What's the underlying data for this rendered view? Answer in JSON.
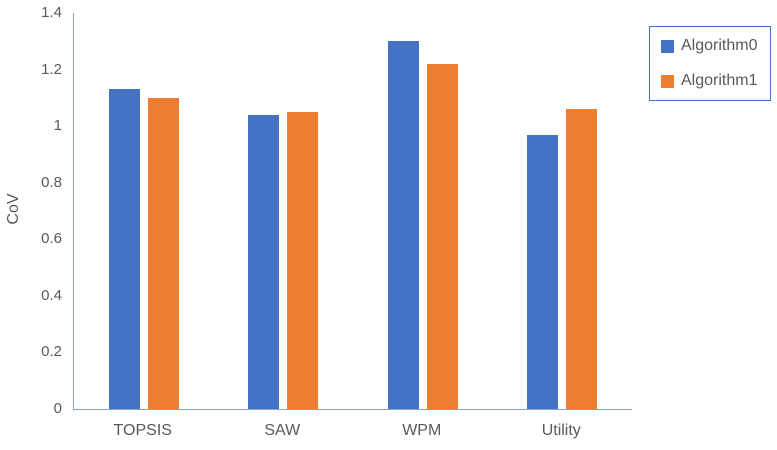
{
  "chart_data": {
    "type": "bar",
    "title": "",
    "xlabel": "",
    "ylabel": "CoV",
    "categories": [
      "TOPSIS",
      "SAW",
      "WPM",
      "Utility"
    ],
    "series": [
      {
        "name": "Algorithm0",
        "color": "#4472C4",
        "values": [
          1.13,
          1.04,
          1.3,
          0.97
        ]
      },
      {
        "name": "Algorithm1",
        "color": "#ED7D31",
        "values": [
          1.1,
          1.05,
          1.22,
          1.06
        ]
      }
    ],
    "ylim": [
      0,
      1.4
    ],
    "yticks": [
      0,
      0.2,
      0.4,
      0.6,
      0.8,
      1,
      1.2,
      1.4
    ],
    "ytick_labels": [
      "0",
      "0.2",
      "0.4",
      "0.6",
      "0.8",
      "1",
      "1.2",
      "1.4"
    ],
    "grid": false,
    "legend_position": "top-right"
  },
  "colors": {
    "background": "#ffffff",
    "text": "#595959",
    "axis_line": "#87a3d8",
    "legend_border": "#4472C4"
  }
}
